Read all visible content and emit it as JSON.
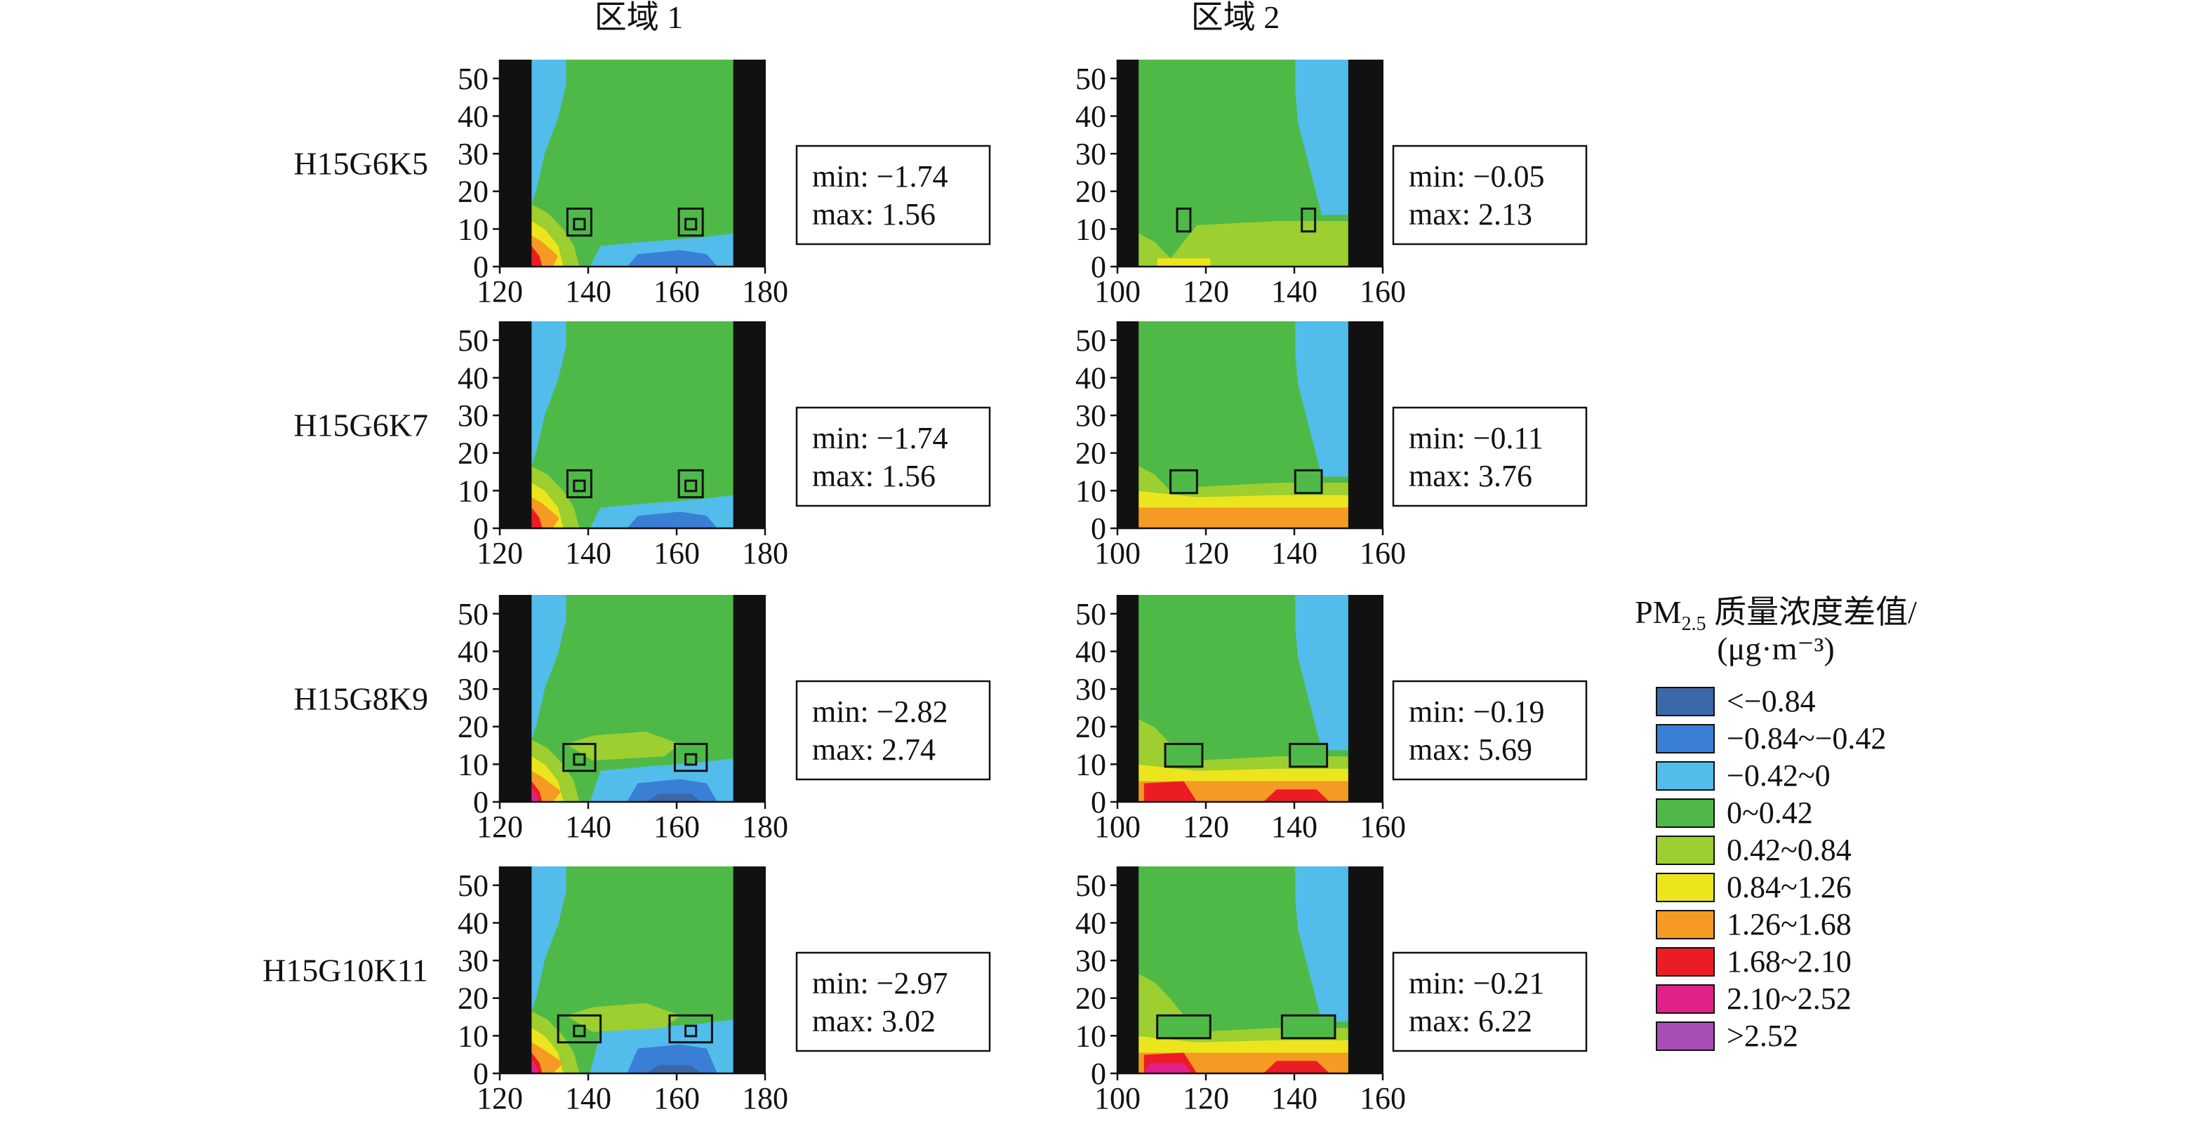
{
  "region_titles": [
    "区域 1",
    "区域 2"
  ],
  "legend": {
    "title_line1_prefix": "PM",
    "title_line1_sub": "2.5",
    "title_line1_rest": " 质量浓度差值/",
    "title_line2": "(μg·m⁻³)",
    "items": [
      {
        "label": "<−0.84",
        "color": "#3a68a8"
      },
      {
        "label": "−0.84~−0.42",
        "color": "#3a7fd6"
      },
      {
        "label": "−0.42~0",
        "color": "#52bdeb"
      },
      {
        "label": "0~0.42",
        "color": "#4fb948"
      },
      {
        "label": "0.42~0.84",
        "color": "#9ccf2f"
      },
      {
        "label": "0.84~1.26",
        "color": "#ece51e"
      },
      {
        "label": "1.26~1.68",
        "color": "#f59a23"
      },
      {
        "label": "1.68~2.10",
        "color": "#ec1c24"
      },
      {
        "label": "2.10~2.52",
        "color": "#e0218a"
      },
      {
        "label": ">2.52",
        "color": "#a84db5"
      }
    ]
  },
  "chart_data": {
    "type": "heatmap",
    "rows": [
      "H15G6K5",
      "H15G6K7",
      "H15G8K9",
      "H15G10K11"
    ],
    "region1": {
      "xticks": [
        "120",
        "140",
        "160",
        "180"
      ],
      "yticks": [
        "0",
        "10",
        "20",
        "30",
        "40",
        "50"
      ],
      "xlim": [
        120,
        180
      ],
      "ylim": [
        0,
        55
      ],
      "stats": [
        {
          "min_label": "min: −1.74",
          "max_label": "max: 1.56",
          "min": -1.74,
          "max": 1.56
        },
        {
          "min_label": "min: −1.74",
          "max_label": "max: 1.56",
          "min": -1.74,
          "max": 1.56
        },
        {
          "min_label": "min: −2.82",
          "max_label": "max: 2.74",
          "min": -2.82,
          "max": 2.74
        },
        {
          "min_label": "min: −2.97",
          "max_label": "max: 3.02",
          "min": -2.97,
          "max": 3.02
        }
      ]
    },
    "region2": {
      "xticks": [
        "100",
        "120",
        "140",
        "160"
      ],
      "yticks": [
        "0",
        "10",
        "20",
        "30",
        "40",
        "50"
      ],
      "xlim": [
        100,
        160
      ],
      "ylim": [
        0,
        55
      ],
      "stats": [
        {
          "min_label": "min: −0.05",
          "max_label": "max: 2.13",
          "min": -0.05,
          "max": 2.13
        },
        {
          "min_label": "min: −0.11",
          "max_label": "max: 3.76",
          "min": -0.11,
          "max": 3.76
        },
        {
          "min_label": "min: −0.19",
          "max_label": "max: 5.69",
          "min": -0.19,
          "max": 5.69
        },
        {
          "min_label": "min: −0.21",
          "max_label": "max: 6.22",
          "min": -0.21,
          "max": 6.22
        }
      ]
    }
  }
}
